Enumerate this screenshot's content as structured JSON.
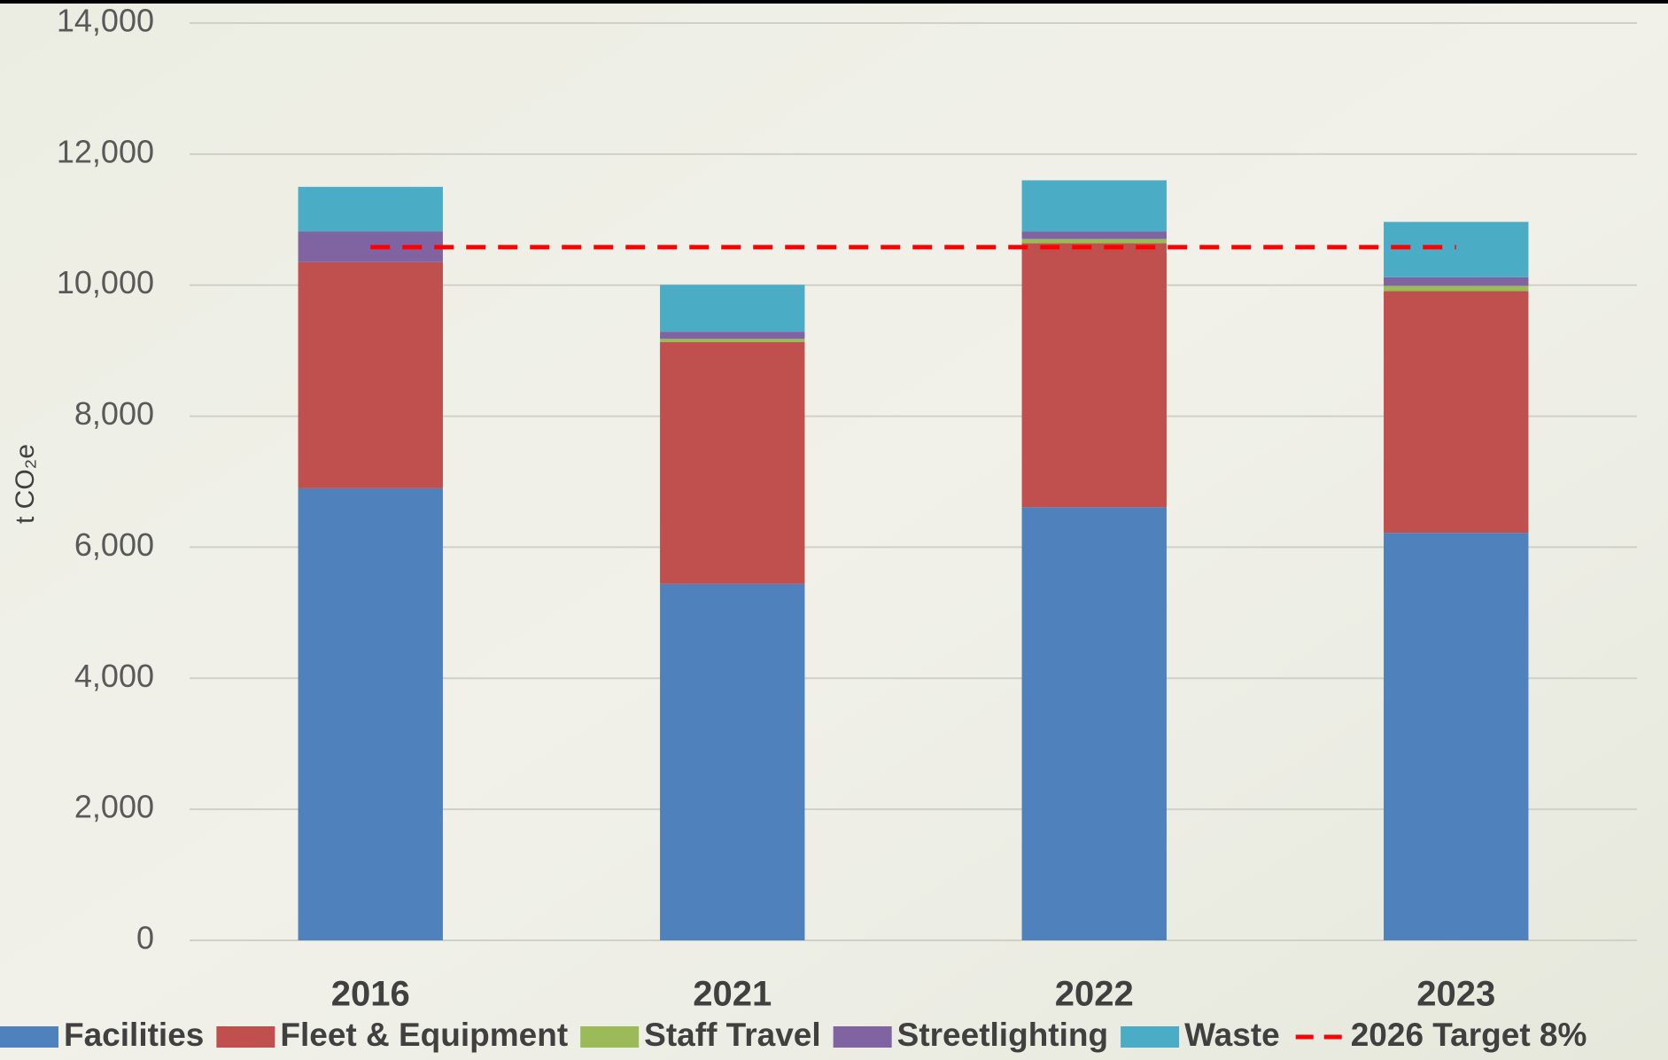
{
  "chart_data": {
    "type": "bar",
    "stacked": true,
    "y_label": "t CO₂e",
    "categories": [
      "2016",
      "2021",
      "2022",
      "2023"
    ],
    "series": [
      {
        "name": "Facilities",
        "color": "#4f81bd",
        "values": [
          6900,
          5440,
          6610,
          6220
        ]
      },
      {
        "name": "Fleet & Equipment",
        "color": "#c0504d",
        "values": [
          3450,
          3690,
          4030,
          3690
        ]
      },
      {
        "name": "Staff Travel",
        "color": "#9bbb59",
        "values": [
          0,
          50,
          65,
          80
        ]
      },
      {
        "name": "Streetlighting",
        "color": "#8064a2",
        "values": [
          470,
          110,
          115,
          130
        ]
      },
      {
        "name": "Waste",
        "color": "#4bacc6",
        "values": [
          680,
          715,
          780,
          845
        ]
      },
      {
        "name": "2026 Target 8%",
        "color": "#ff0000",
        "type": "line",
        "dashed": true,
        "values": [
          10580,
          10580,
          10580,
          10580
        ]
      }
    ],
    "ylim": [
      0,
      14000
    ],
    "yticks": [
      0,
      {
        "value": 2000,
        "label": "2,000"
      },
      {
        "value": 4000,
        "label": "4,000"
      },
      {
        "value": 6000,
        "label": "6,000"
      },
      {
        "value": 8000,
        "label": "8,000"
      },
      {
        "value": 10000,
        "label": "10,000"
      },
      {
        "value": 12000,
        "label": "12,000"
      },
      {
        "value": 14000,
        "label": "14,000"
      }
    ],
    "grid": true,
    "legend": "bottom"
  }
}
